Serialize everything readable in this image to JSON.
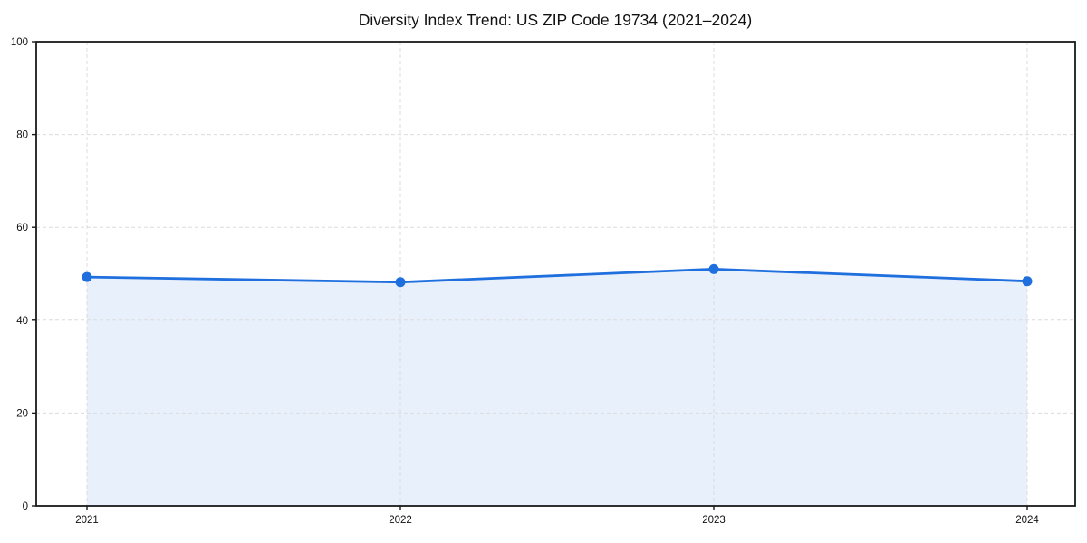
{
  "chart_data": {
    "type": "area",
    "title": "Diversity Index Trend: US ZIP Code 19734 (2021–2024)",
    "categories": [
      "2021",
      "2022",
      "2023",
      "2024"
    ],
    "series": [
      {
        "name": "Diversity Index",
        "values": [
          49.3,
          48.2,
          51.0,
          48.4
        ]
      }
    ],
    "xlabel": "",
    "ylabel": "",
    "ylim": [
      0,
      100
    ],
    "yticks": [
      0,
      20,
      40,
      60,
      80,
      100
    ],
    "grid": "dashed",
    "legend_position": "none",
    "colors": {
      "line": "#1f6fde",
      "marker": "#1f6fde",
      "fill": "rgba(31,111,222,0.10)",
      "grid": "#dcdcdc",
      "spine": "#1a1a1a",
      "background": "#ffffff",
      "text": "#111111"
    }
  }
}
